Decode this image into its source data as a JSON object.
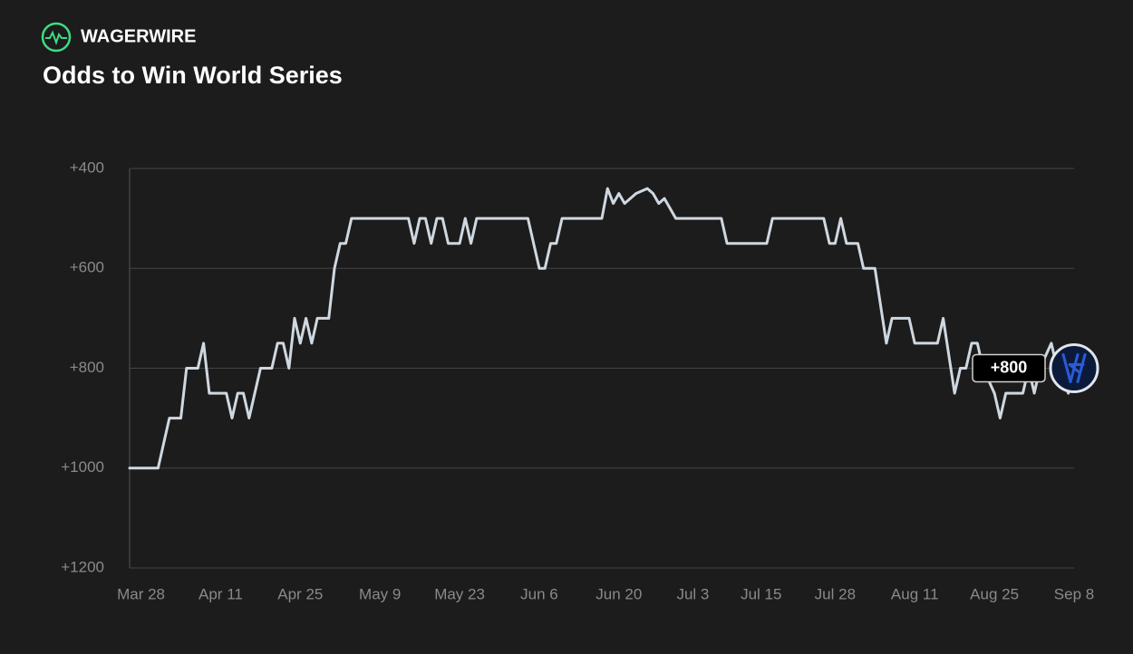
{
  "brand": "WAGERWIRE",
  "chart_data": {
    "type": "line",
    "title": "Odds to Win World Series",
    "x": [
      "Mar 26",
      "Mar 31",
      "Apr 2",
      "Apr 4",
      "Apr 5",
      "Apr 7",
      "Apr 8",
      "Apr 9",
      "Apr 12",
      "Apr 13",
      "Apr 14",
      "Apr 15",
      "Apr 16",
      "Apr 18",
      "Apr 20",
      "Apr 21",
      "Apr 22",
      "Apr 23",
      "Apr 24",
      "Apr 25",
      "Apr 26",
      "Apr 27",
      "Apr 28",
      "Apr 30",
      "May 1",
      "May 2",
      "May 3",
      "May 4",
      "May 14",
      "May 15",
      "May 16",
      "May 17",
      "May 18",
      "May 19",
      "May 20",
      "May 21",
      "May 23",
      "May 24",
      "May 25",
      "May 26",
      "Jun 4",
      "Jun 6",
      "Jun 7",
      "Jun 8",
      "Jun 9",
      "Jun 10",
      "Jun 17",
      "Jun 18",
      "Jun 19",
      "Jun 20",
      "Jun 21",
      "Jun 23",
      "Jun 25",
      "Jun 26",
      "Jun 27",
      "Jun 28",
      "Jun 30",
      "Jul 8",
      "Jul 9",
      "Jul 16",
      "Jul 17",
      "Jul 26",
      "Jul 27",
      "Jul 28",
      "Jul 29",
      "Jul 30",
      "Aug 1",
      "Aug 2",
      "Aug 4",
      "Aug 6",
      "Aug 7",
      "Aug 10",
      "Aug 11",
      "Aug 15",
      "Aug 16",
      "Aug 18",
      "Aug 19",
      "Aug 20",
      "Aug 21",
      "Aug 22",
      "Aug 23",
      "Aug 25",
      "Aug 26",
      "Aug 27",
      "Aug 30",
      "Aug 31",
      "Sep 1",
      "Sep 2",
      "Sep 4",
      "Sep 5",
      "Sep 7",
      "Sep 8"
    ],
    "values": [
      1000,
      1000,
      900,
      900,
      800,
      800,
      750,
      850,
      850,
      900,
      850,
      850,
      900,
      800,
      800,
      750,
      750,
      800,
      700,
      750,
      700,
      750,
      700,
      700,
      600,
      550,
      550,
      500,
      500,
      550,
      500,
      500,
      550,
      500,
      500,
      550,
      550,
      500,
      550,
      500,
      500,
      600,
      600,
      550,
      550,
      500,
      500,
      440,
      470,
      450,
      470,
      450,
      440,
      450,
      470,
      460,
      500,
      500,
      550,
      550,
      500,
      500,
      550,
      550,
      500,
      550,
      550,
      600,
      600,
      750,
      700,
      700,
      750,
      750,
      700,
      850,
      800,
      800,
      750,
      750,
      800,
      850,
      900,
      850,
      850,
      800,
      850,
      800,
      750,
      800,
      850,
      800
    ],
    "color": "#cfd8e0",
    "xlim": [
      "Mar 26",
      "Sep 8"
    ],
    "xticks": [
      "Mar 28",
      "Apr 11",
      "Apr 25",
      "May 9",
      "May 23",
      "Jun 6",
      "Jun 20",
      "Jul 3",
      "Jul 15",
      "Jul 28",
      "Aug 11",
      "Aug 25",
      "Sep 8"
    ],
    "ylim": [
      1200,
      400
    ],
    "yticks": [
      {
        "value": 400,
        "label": "+400"
      },
      {
        "value": 600,
        "label": "+600"
      },
      {
        "value": 800,
        "label": "+800"
      },
      {
        "value": 1000,
        "label": "+1000"
      },
      {
        "value": 1200,
        "label": "+1200"
      }
    ],
    "grid": true,
    "annotation": {
      "value": 800,
      "label": "+800"
    }
  }
}
